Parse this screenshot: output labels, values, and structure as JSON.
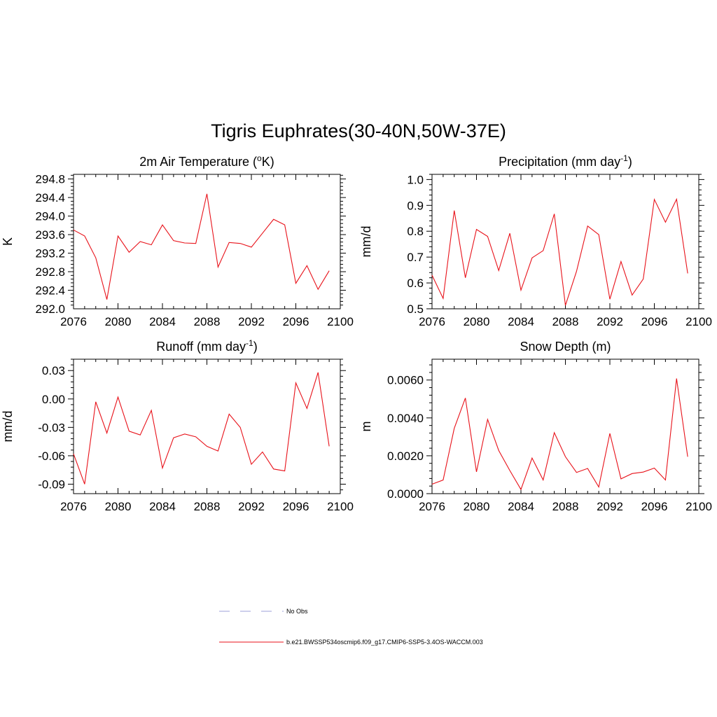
{
  "title": "Tigris Euphrates(30-40N,50W-37E)",
  "line_color": "#e8121a",
  "obs_color": "#9da0d8",
  "legend": {
    "obs_label": "No Obs",
    "model_label": "b.e21.BWSSP534oscmip6.f09_g17.CMIP6-SSP5-3.4OS-WACCM.003"
  },
  "chart_data": [
    {
      "type": "line",
      "title": "2m Air Temperature (",
      "title_sup": "o",
      "title_after": "K)",
      "ylabel": "K",
      "xlim": [
        2076,
        2100
      ],
      "ylim": [
        292.0,
        294.9
      ],
      "xticks": [
        "2076",
        "2080",
        "2084",
        "2088",
        "2092",
        "2096",
        "2100"
      ],
      "yticks": [
        "292.0",
        "292.4",
        "292.8",
        "293.2",
        "293.6",
        "294.0",
        "294.4",
        "294.8"
      ],
      "x": [
        2076,
        2077,
        2078,
        2079,
        2080,
        2081,
        2082,
        2083,
        2084,
        2085,
        2086,
        2087,
        2088,
        2089,
        2090,
        2091,
        2092,
        2093,
        2094,
        2095,
        2096,
        2097,
        2098,
        2099
      ],
      "y": [
        293.7,
        293.57,
        293.1,
        292.2,
        293.57,
        293.22,
        293.45,
        293.38,
        293.81,
        293.47,
        293.42,
        293.41,
        294.48,
        292.9,
        293.43,
        293.41,
        293.33,
        293.63,
        293.93,
        293.81,
        292.55,
        292.93,
        292.42,
        292.82
      ]
    },
    {
      "type": "line",
      "title": "Precipitation (mm day",
      "title_sup": "-1",
      "title_after": ")",
      "ylabel": "mm/d",
      "xlim": [
        2076,
        2100
      ],
      "ylim": [
        0.5,
        1.02
      ],
      "xticks": [
        "2076",
        "2080",
        "2084",
        "2088",
        "2092",
        "2096",
        "2100"
      ],
      "yticks": [
        "0.5",
        "0.6",
        "0.7",
        "0.8",
        "0.9",
        "1.0"
      ],
      "x": [
        2076,
        2077,
        2078,
        2079,
        2080,
        2081,
        2082,
        2083,
        2084,
        2085,
        2086,
        2087,
        2088,
        2089,
        2090,
        2091,
        2092,
        2093,
        2094,
        2095,
        2096,
        2097,
        2098,
        2099
      ],
      "y": [
        0.63,
        0.54,
        0.88,
        0.62,
        0.807,
        0.78,
        0.648,
        0.792,
        0.572,
        0.697,
        0.725,
        0.867,
        0.513,
        0.645,
        0.82,
        0.787,
        0.537,
        0.683,
        0.553,
        0.615,
        0.923,
        0.835,
        0.924,
        0.637
      ]
    },
    {
      "type": "line",
      "title": "Runoff (mm day",
      "title_sup": "-1",
      "title_after": ")",
      "ylabel": "mm/d",
      "xlim": [
        2076,
        2100
      ],
      "ylim": [
        -0.1,
        0.042
      ],
      "xticks": [
        "2076",
        "2080",
        "2084",
        "2088",
        "2092",
        "2096",
        "2100"
      ],
      "yticks": [
        "-0.09",
        "-0.06",
        "-0.03",
        "0.00",
        "0.03"
      ],
      "x": [
        2076,
        2077,
        2078,
        2079,
        2080,
        2081,
        2082,
        2083,
        2084,
        2085,
        2086,
        2087,
        2088,
        2089,
        2090,
        2091,
        2092,
        2093,
        2094,
        2095,
        2096,
        2097,
        2098,
        2099
      ],
      "y": [
        -0.058,
        -0.09,
        -0.003,
        -0.036,
        0.002,
        -0.034,
        -0.038,
        -0.012,
        -0.073,
        -0.041,
        -0.037,
        -0.04,
        -0.05,
        -0.055,
        -0.016,
        -0.03,
        -0.069,
        -0.056,
        -0.074,
        -0.076,
        0.017,
        -0.01,
        0.028,
        -0.05
      ]
    },
    {
      "type": "line",
      "title": "Snow Depth (m)",
      "title_sup": "",
      "title_after": "",
      "ylabel": "m",
      "xlim": [
        2076,
        2100
      ],
      "ylim": [
        0.0,
        0.0071
      ],
      "xticks": [
        "2076",
        "2080",
        "2084",
        "2088",
        "2092",
        "2096",
        "2100"
      ],
      "yticks": [
        "0.0000",
        "0.0020",
        "0.0040",
        "0.0060"
      ],
      "x": [
        2076,
        2077,
        2078,
        2079,
        2080,
        2081,
        2082,
        2083,
        2084,
        2085,
        2086,
        2087,
        2088,
        2089,
        2090,
        2091,
        2092,
        2093,
        2094,
        2095,
        2096,
        2097,
        2098,
        2099
      ],
      "y": [
        0.0005,
        0.00072,
        0.00345,
        0.00505,
        0.00115,
        0.00392,
        0.00228,
        0.00122,
        0.00022,
        0.00188,
        0.00072,
        0.00322,
        0.00195,
        0.00112,
        0.00133,
        0.00035,
        0.00318,
        0.00078,
        0.00106,
        0.00114,
        0.00135,
        0.00072,
        0.00608,
        0.00195
      ]
    }
  ]
}
